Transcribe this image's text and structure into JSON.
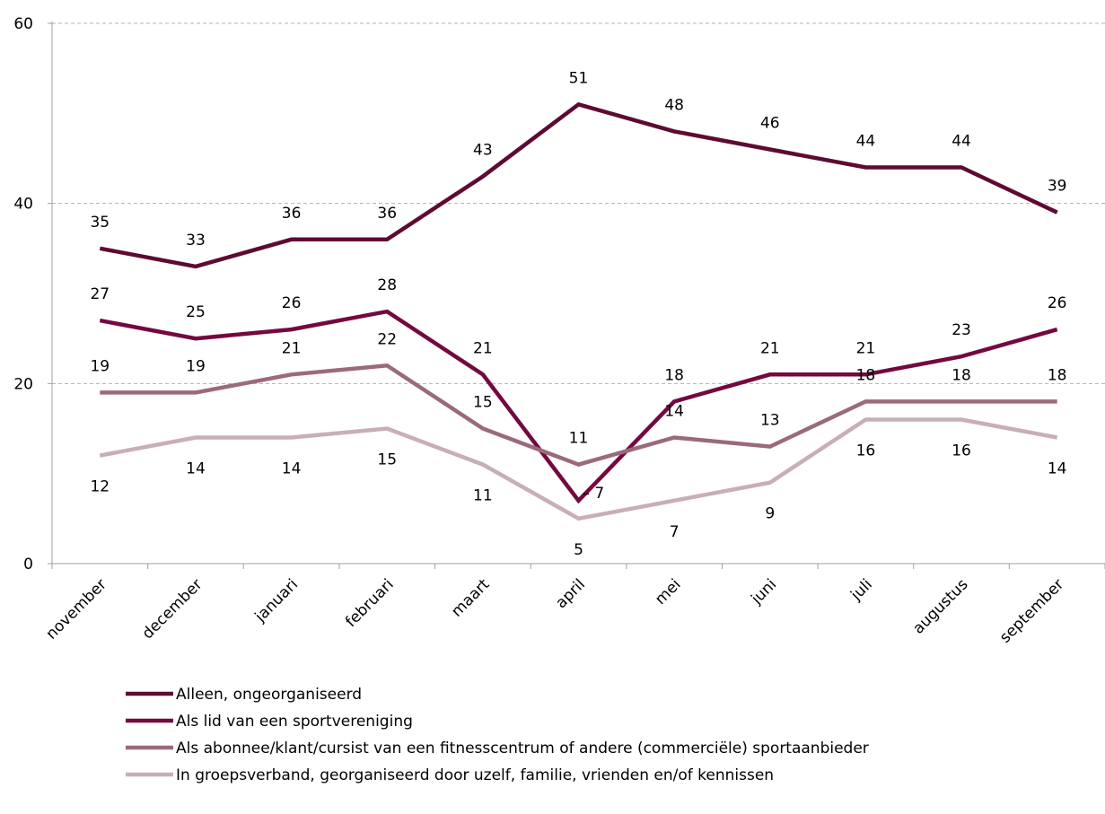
{
  "chart_data": {
    "type": "line",
    "categories": [
      "november",
      "december",
      "januari",
      "februari",
      "maart",
      "april",
      "mei",
      "juni",
      "juli",
      "augustus",
      "september"
    ],
    "ylim": [
      0,
      60
    ],
    "yticks": [
      0,
      20,
      40,
      60
    ],
    "grid": "horizontal dashed",
    "legend_placement": "bottom",
    "series": [
      {
        "name": "Alleen, ongeorganiseerd",
        "color": "#5e0a33",
        "values": [
          35,
          33,
          36,
          36,
          43,
          51,
          48,
          46,
          44,
          44,
          39
        ]
      },
      {
        "name": "Als lid van een sportvereniging",
        "color": "#74083f",
        "values": [
          27,
          25,
          26,
          28,
          21,
          7,
          18,
          21,
          21,
          23,
          26
        ]
      },
      {
        "name": "Als abonnee/klant/cursist van een fitnesscentrum of andere (commerciële) sportaanbieder",
        "color": "#9a6a7c",
        "values": [
          19,
          19,
          21,
          22,
          15,
          11,
          14,
          13,
          18,
          18,
          18
        ]
      },
      {
        "name": "In groepsverband, georganiseerd door uzelf, familie, vrienden en/of kennissen",
        "color": "#c8aeb8",
        "values": [
          12,
          14,
          14,
          15,
          11,
          5,
          7,
          9,
          16,
          16,
          14
        ]
      }
    ]
  }
}
